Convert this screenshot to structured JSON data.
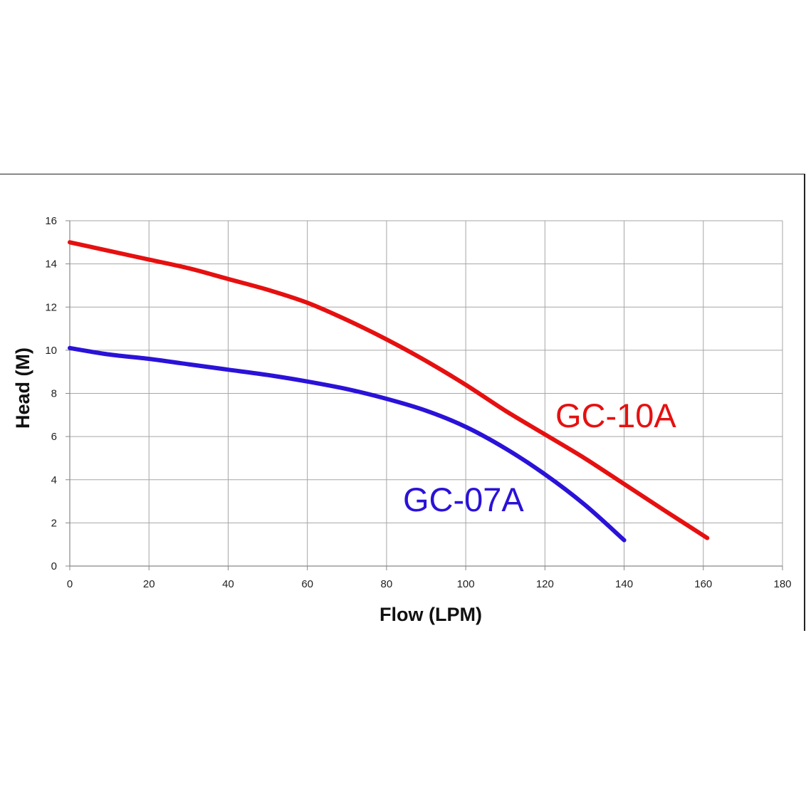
{
  "chart_data": {
    "type": "line",
    "title": "",
    "xlabel": "Flow (LPM)",
    "ylabel": "Head (M)",
    "xlim": [
      0,
      180
    ],
    "ylim": [
      0,
      16
    ],
    "xticks": [
      "0",
      "20",
      "40",
      "60",
      "80",
      "100",
      "120",
      "140",
      "160",
      "180"
    ],
    "yticks": [
      "0",
      "2",
      "4",
      "6",
      "8",
      "10",
      "12",
      "14",
      "16"
    ],
    "grid": true,
    "legend": "none",
    "series": [
      {
        "name": "GC-10A",
        "color": "#e61010",
        "points": [
          [
            0,
            15.0
          ],
          [
            10,
            14.6
          ],
          [
            20,
            14.2
          ],
          [
            30,
            13.8
          ],
          [
            40,
            13.3
          ],
          [
            50,
            12.8
          ],
          [
            60,
            12.2
          ],
          [
            70,
            11.4
          ],
          [
            80,
            10.5
          ],
          [
            90,
            9.5
          ],
          [
            100,
            8.4
          ],
          [
            110,
            7.2
          ],
          [
            120,
            6.1
          ],
          [
            130,
            5.0
          ],
          [
            140,
            3.8
          ],
          [
            150,
            2.6
          ],
          [
            161,
            1.3
          ]
        ]
      },
      {
        "name": "GC-07A",
        "color": "#2a12d8",
        "points": [
          [
            0,
            10.1
          ],
          [
            10,
            9.8
          ],
          [
            20,
            9.6
          ],
          [
            30,
            9.35
          ],
          [
            40,
            9.1
          ],
          [
            50,
            8.85
          ],
          [
            60,
            8.55
          ],
          [
            70,
            8.2
          ],
          [
            80,
            7.75
          ],
          [
            90,
            7.2
          ],
          [
            100,
            6.45
          ],
          [
            110,
            5.45
          ],
          [
            120,
            4.25
          ],
          [
            130,
            2.85
          ],
          [
            140,
            1.2
          ]
        ]
      }
    ]
  }
}
